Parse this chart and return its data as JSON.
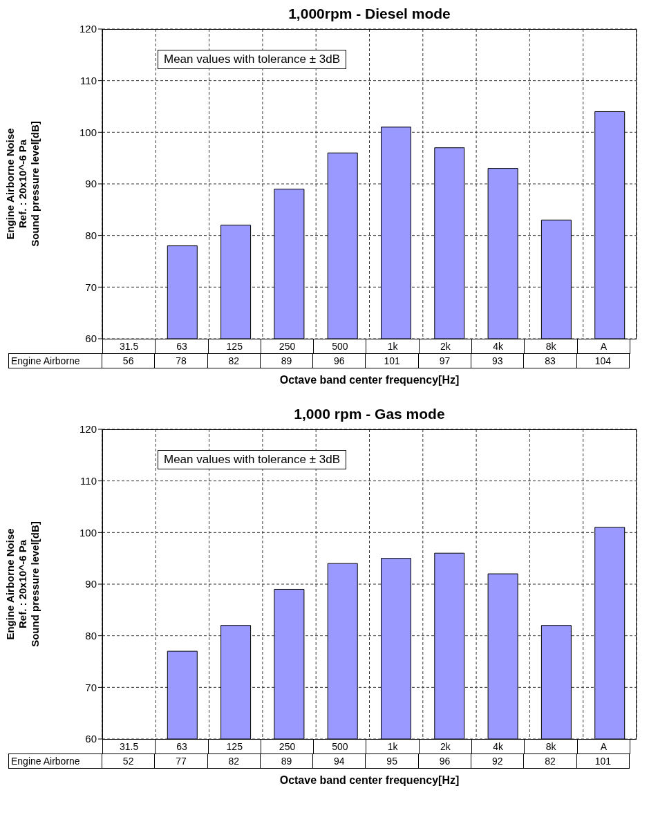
{
  "chart_data": [
    {
      "type": "bar",
      "title": "1,000rpm - Diesel mode",
      "xlabel": "Octave band center frequency[Hz]",
      "ylabel": "Engine Airborne Noise\nRef. : 20x10^-6 Pa\nSound pressure level[dB]",
      "annotations": [
        "Mean values with tolerance ± 3dB"
      ],
      "categories": [
        "31.5",
        "63",
        "125",
        "250",
        "500",
        "1k",
        "2k",
        "4k",
        "8k",
        "A"
      ],
      "series": [
        {
          "name": "Engine Airborne",
          "color": "#9999ff",
          "values": [
            null,
            78,
            82,
            89,
            96,
            101,
            97,
            93,
            83,
            104
          ],
          "value_labels": [
            "56",
            "78",
            "82",
            "89",
            "96",
            "101",
            "97",
            "93",
            "83",
            "104"
          ]
        }
      ],
      "ylim": [
        60,
        120
      ],
      "yticks": [
        60,
        70,
        80,
        90,
        100,
        110,
        120
      ],
      "grid": true
    },
    {
      "type": "bar",
      "title": "1,000 rpm - Gas mode",
      "xlabel": "Octave band center frequency[Hz]",
      "ylabel": "Engine Airborne Noise\nRef. : 20x10^-6 Pa\nSound pressure level[dB]",
      "annotations": [
        "Mean values with tolerance ± 3dB"
      ],
      "categories": [
        "31.5",
        "63",
        "125",
        "250",
        "500",
        "1k",
        "2k",
        "4k",
        "8k",
        "A"
      ],
      "series": [
        {
          "name": "Engine Airborne",
          "color": "#9999ff",
          "values": [
            null,
            77,
            82,
            89,
            94,
            95,
            96,
            92,
            82,
            101
          ],
          "value_labels": [
            "52",
            "77",
            "82",
            "89",
            "94",
            "95",
            "96",
            "92",
            "82",
            "101"
          ]
        }
      ],
      "ylim": [
        60,
        120
      ],
      "yticks": [
        60,
        70,
        80,
        90,
        100,
        110,
        120
      ],
      "grid": true
    }
  ]
}
